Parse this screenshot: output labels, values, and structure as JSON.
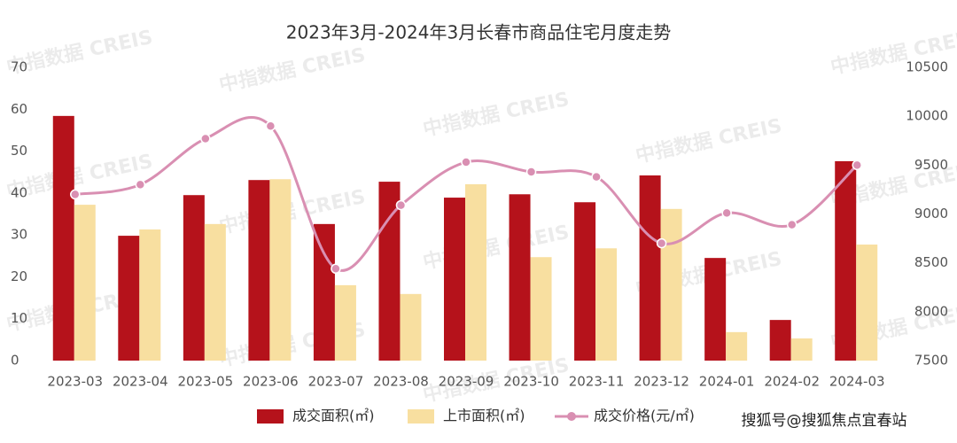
{
  "chart_data": {
    "type": "bar-line",
    "title": "2023年3月-2024年3月长春市商品住宅月度走势",
    "categories": [
      "2023-03",
      "2023-04",
      "2023-05",
      "2023-06",
      "2023-07",
      "2023-08",
      "2023-09",
      "2023-10",
      "2023-11",
      "2023-12",
      "2024-01",
      "2024-02",
      "2024-03"
    ],
    "series": [
      {
        "name": "成交面积(㎡)",
        "color": "#b5121b",
        "kind": "bar",
        "values": [
          58.4,
          29.8,
          39.5,
          43.1,
          32.6,
          42.7,
          38.9,
          39.7,
          37.8,
          44.2,
          24.5,
          9.7,
          47.6
        ]
      },
      {
        "name": "上市面积(㎡)",
        "color": "#f8dfa0",
        "kind": "bar",
        "values": [
          37.2,
          31.3,
          32.6,
          43.3,
          18.0,
          15.9,
          42.1,
          24.7,
          26.8,
          36.2,
          6.8,
          5.3,
          27.7
        ]
      },
      {
        "name": "成交价格(元/㎡)",
        "color": "#d98fb2",
        "kind": "line",
        "axis": "y2",
        "values": [
          9200,
          9300,
          9770,
          9900,
          8440,
          9090,
          9530,
          9430,
          9380,
          8700,
          9010,
          8890,
          9500
        ]
      }
    ],
    "ylim": [
      0,
      70
    ],
    "yticks": [
      0,
      10,
      20,
      30,
      40,
      50,
      60,
      70
    ],
    "y2lim": [
      7500,
      10500
    ],
    "y2ticks": [
      7500,
      8000,
      8500,
      9000,
      9500,
      10000,
      10500
    ],
    "grid": false,
    "legend": "bottom",
    "watermark": "中指数据 CREIS",
    "source": "搜狐号@搜狐焦点宜春站"
  }
}
